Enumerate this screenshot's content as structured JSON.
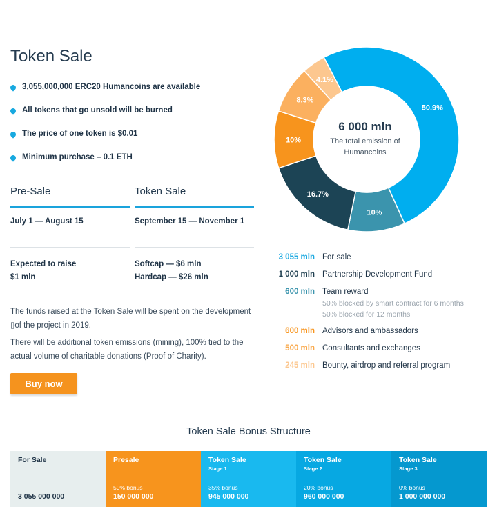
{
  "title": "Token Sale",
  "bullets": [
    "3,055,000,000 ERC20 Humancoins are available",
    "All tokens that go unsold will be burned",
    "The price of one token is $0.01",
    "Minimum purchase – 0.1 ETH"
  ],
  "columns": [
    {
      "heading": "Pre-Sale",
      "dates": "July 1 — August 15",
      "raise_line1": "Expected to raise",
      "raise_line2": "$1 mln"
    },
    {
      "heading": "Token Sale",
      "dates": "September 15 — November 1",
      "raise_line1": "Softcap — $6 mln",
      "raise_line2": "Hardcap — $26 mln"
    }
  ],
  "paragraph1": "The funds raised at the Token Sale will be spent on the development ▯of the project in 2019.",
  "paragraph2": "There will be additional token emissions (mining), 100% tied to the actual volume of charitable donations (Proof of Charity).",
  "buy_label": "Buy now",
  "chart_center": {
    "value": "6 000 mln",
    "caption_line1": "The total emission of",
    "caption_line2": "Humancoins"
  },
  "chart_data": {
    "type": "pie",
    "title": "6 000 mln",
    "categories": [
      "For sale",
      "Team reward",
      "Partnership Development Fund",
      "Advisors and ambassadors",
      "Consultants and exchanges",
      "Bounty, airdrop and referral program"
    ],
    "values": [
      50.9,
      10,
      16.7,
      10,
      8.3,
      4.1
    ],
    "labels": [
      "50.9%",
      "10%",
      "16.7%",
      "10%",
      "8.3%",
      "4.1%"
    ],
    "colors": [
      "#00aeef",
      "#3b94ad",
      "#1c4455",
      "#f7941d",
      "#fbb05f",
      "#fcc78f"
    ]
  },
  "legend": [
    {
      "value": "3 055 mln",
      "label": "For sale",
      "color": "#1aa8e0"
    },
    {
      "value": "1 000 mln",
      "label": "Partnership Development Fund",
      "color": "#1f3f50"
    },
    {
      "value": "600 mln",
      "label": "Team reward",
      "color": "#3b94ad",
      "sub1": "50% blocked by smart contract for 6 months",
      "sub2": "50% blocked for 12 months"
    },
    {
      "value": "600 mln",
      "label": "Advisors and ambassadors",
      "color": "#f7941d"
    },
    {
      "value": "500 mln",
      "label": "Consultants and exchanges",
      "color": "#f9a84a"
    },
    {
      "value": "245 mln",
      "label": "Bounty, airdrop and referral program",
      "color": "#fcc78f"
    }
  ],
  "bonus": {
    "title": "Token Sale Bonus Structure",
    "cells": [
      {
        "name": "For Sale",
        "stage": "",
        "bonus": "",
        "amount": "3 055 000 000",
        "color": "#e7eeee"
      },
      {
        "name": "Presale",
        "stage": "",
        "bonus": "50% bonus",
        "amount": "150 000 000",
        "color": "#f7941d"
      },
      {
        "name": "Token Sale",
        "stage": "Stage 1",
        "bonus": "35% bonus",
        "amount": "945 000 000",
        "color": "#19b9ef"
      },
      {
        "name": "Token Sale",
        "stage": "Stage 2",
        "bonus": "20% bonus",
        "amount": "960 000 000",
        "color": "#07a8e2"
      },
      {
        "name": "Token Sale",
        "stage": "Stage 3",
        "bonus": "0% bonus",
        "amount": "1 000 000 000",
        "color": "#0598cf"
      }
    ]
  }
}
